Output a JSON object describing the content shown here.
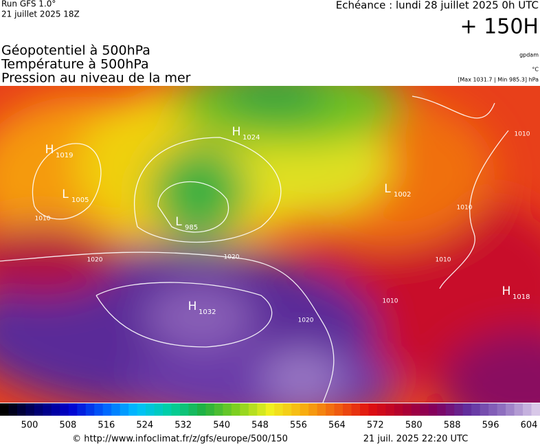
{
  "header": {
    "run": "Run GFS 1.0°",
    "run_date": "21 juillet 2025 18Z",
    "valid_time": "Echéance : lundi 28 juillet 2025 0h UTC",
    "lead_time": "+ 150H",
    "titles": [
      "Géopotentiel à 500hPa",
      "Température à 500hPa",
      "Pression au niveau de la mer"
    ],
    "units": [
      "gpdam",
      "°C",
      "[Max 1031.7 | Min 985.3] hPa"
    ]
  },
  "map": {
    "pressure_centers": [
      {
        "kind": "H",
        "value": "1019"
      },
      {
        "kind": "L",
        "value": "1005"
      },
      {
        "kind": "H",
        "value": "1024"
      },
      {
        "kind": "L",
        "value": "985"
      },
      {
        "kind": "L",
        "value": "1002"
      },
      {
        "kind": "H",
        "value": "1032"
      },
      {
        "kind": "H",
        "value": "1018"
      }
    ],
    "isobar_labels": [
      "1020",
      "1020",
      "1020",
      "1010",
      "1010",
      "1010",
      "1010",
      "1010"
    ]
  },
  "legend": {
    "labels": [
      500,
      508,
      516,
      524,
      532,
      540,
      548,
      556,
      564,
      572,
      580,
      588,
      596,
      604
    ]
  },
  "footer": {
    "source": "© http://www.infoclimat.fr/z/gfs/europe/500/150",
    "generated": "21 juil. 2025 22:20 UTC"
  }
}
